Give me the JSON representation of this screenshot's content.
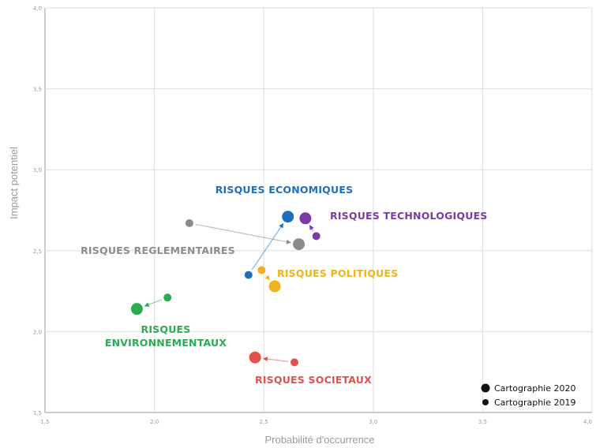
{
  "chart_data": {
    "type": "scatter",
    "xlabel": "Probabilité d'occurrence",
    "ylabel": "Impact potentiel",
    "xlim": [
      1.5,
      4.0
    ],
    "ylim": [
      1.5,
      4.0
    ],
    "x_ticks": [
      "1,5",
      "2,0",
      "2,5",
      "3,0",
      "3,5",
      "4,0"
    ],
    "y_ticks": [
      "1,5",
      "2,0",
      "2,5",
      "3,0",
      "3,5",
      "4,0"
    ],
    "grid": true,
    "legend_position": "bottom-right",
    "legend": [
      {
        "label": "Cartographie 2020",
        "marker": "large"
      },
      {
        "label": "Cartographie 2019",
        "marker": "small"
      }
    ],
    "series": [
      {
        "name": "RISQUES ECONOMIQUES",
        "label_lines": [
          "RISQUES ECONOMIQUES"
        ],
        "color": "#1f6fb8",
        "point_2019": [
          2.43,
          2.35
        ],
        "point_2020": [
          2.61,
          2.71
        ]
      },
      {
        "name": "RISQUES TECHNOLOGIQUES",
        "label_lines": [
          "RISQUES TECHNOLOGIQUES"
        ],
        "color": "#7b3aa5",
        "point_2019": [
          2.74,
          2.59
        ],
        "point_2020": [
          2.69,
          2.7
        ]
      },
      {
        "name": "RISQUES REGLEMENTAIRES",
        "label_lines": [
          "RISQUES REGLEMENTAIRES"
        ],
        "color": "#8c8c8c",
        "point_2019": [
          2.16,
          2.67
        ],
        "point_2020": [
          2.66,
          2.54
        ]
      },
      {
        "name": "RISQUES POLITIQUES",
        "label_lines": [
          "RISQUES POLITIQUES"
        ],
        "color": "#f2b21b",
        "point_2019": [
          2.49,
          2.38
        ],
        "point_2020": [
          2.55,
          2.28
        ]
      },
      {
        "name": "RISQUES ENVIRONNEMENTAUX",
        "label_lines": [
          "RISQUES",
          "ENVIRONNEMENTAUX"
        ],
        "color": "#2bab54",
        "point_2019": [
          2.06,
          2.21
        ],
        "point_2020": [
          1.92,
          2.14
        ]
      },
      {
        "name": "RISQUES SOCIETAUX",
        "label_lines": [
          "RISQUES SOCIETAUX"
        ],
        "color": "#e0524a",
        "point_2019": [
          2.64,
          1.81
        ],
        "point_2020": [
          2.46,
          1.84
        ]
      }
    ]
  }
}
